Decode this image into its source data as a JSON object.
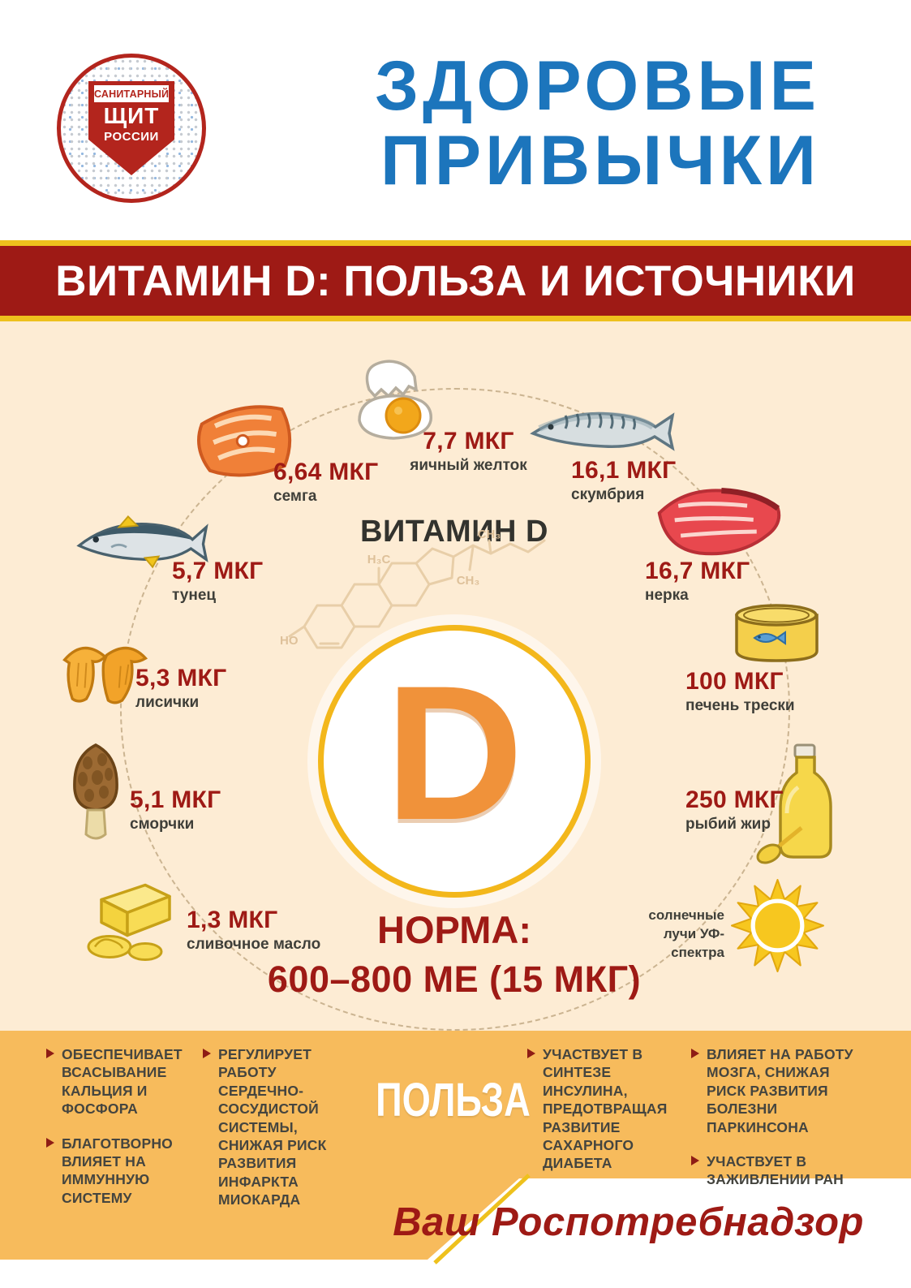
{
  "header": {
    "logo": {
      "line1": "САНИТАРНЫЙ",
      "line2": "ЩИТ",
      "line3": "РОССИИ"
    },
    "title": {
      "line1": "ЗДОРОВЫЕ",
      "line2": "ПРИВЫЧКИ"
    }
  },
  "banner": {
    "title": "ВИТАМИН D: ПОЛЬЗА И ИСТОЧНИКИ"
  },
  "center": {
    "heading": "ВИТАМИН D",
    "letter": "D",
    "molecule_labels": {
      "h3c": "H₃C",
      "ch3_top": "CH₃",
      "ch3_mid": "CH₃",
      "ho": "HO"
    },
    "norm_label": "НОРМА:",
    "norm_value": "600–800 МЕ (15 МКГ)"
  },
  "sources": [
    {
      "id": "semga",
      "icon": "salmon-steak-icon",
      "value": "6,64 МКГ",
      "label": "семга"
    },
    {
      "id": "egg",
      "icon": "egg-yolk-icon",
      "value": "7,7 МКГ",
      "label": "яичный желток"
    },
    {
      "id": "skumbriya",
      "icon": "mackerel-icon",
      "value": "16,1 МКГ",
      "label": "скумбрия"
    },
    {
      "id": "nerka",
      "icon": "sockeye-steak-icon",
      "value": "16,7 МКГ",
      "label": "нерка"
    },
    {
      "id": "tunets",
      "icon": "tuna-icon",
      "value": "5,7 МКГ",
      "label": "тунец"
    },
    {
      "id": "pechen-treski",
      "icon": "canned-fish-icon",
      "value": "100 МКГ",
      "label": "печень трески"
    },
    {
      "id": "lisichki",
      "icon": "chanterelle-icon",
      "value": "5,3 МКГ",
      "label": "лисички"
    },
    {
      "id": "rybiy-zhir",
      "icon": "fish-oil-bottle-icon",
      "value": "250 МКГ",
      "label": "рыбий жир"
    },
    {
      "id": "smorchki",
      "icon": "morel-icon",
      "value": "5,1 МКГ",
      "label": "сморчки"
    },
    {
      "id": "sun",
      "icon": "sun-icon",
      "value": "",
      "label": "солнечные лучи УФ-спектра"
    },
    {
      "id": "maslo",
      "icon": "butter-icon",
      "value": "1,3 МКГ",
      "label": "сливочное масло"
    }
  ],
  "benefits": {
    "title": "ПОЛЬЗА",
    "columns": [
      [
        "ОБЕСПЕЧИВАЕТ ВСАСЫВАНИЕ КАЛЬЦИЯ И ФОСФОРА",
        "БЛАГОТВОРНО ВЛИЯЕТ НА ИММУННУЮ СИСТЕМУ"
      ],
      [
        "РЕГУЛИРУЕТ РАБОТУ СЕРДЕЧНО-СОСУДИСТОЙ СИСТЕМЫ, СНИЖАЯ РИСК РАЗВИТИЯ ИНФАРКТА МИОКАРДА"
      ],
      [
        "УЧАСТВУЕТ В СИНТЕЗЕ ИНСУЛИНА, ПРЕДОТВРАЩАЯ РАЗВИТИЕ САХАРНОГО ДИАБЕТА"
      ],
      [
        "ВЛИЯЕТ НА РАБОТУ МОЗГА, СНИЖАЯ РИСК РАЗВИТИЯ БОЛЕЗНИ ПАРКИНСОНА",
        "УЧАСТВУЕТ В ЗАЖИВЛЕНИИ РАН"
      ]
    ]
  },
  "footer": {
    "text": "Ваш Роспотребнадзор"
  },
  "colors": {
    "accent_blue": "#1c75bc",
    "dark_red": "#9e1a15",
    "band_orange": "#f7bb5c",
    "gold": "#eec11d",
    "d_orange": "#f0923a",
    "peach_bg": "#fdecd4"
  }
}
